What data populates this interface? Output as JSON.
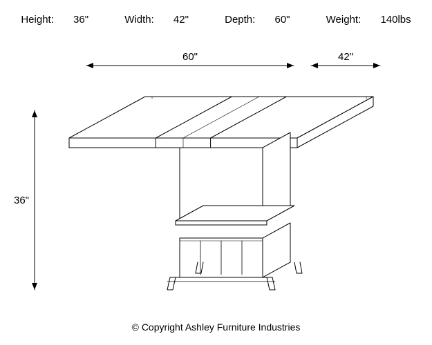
{
  "header": {
    "height_label": "Height:",
    "height_value": "36\"",
    "width_label": "Width:",
    "width_value": "42\"",
    "depth_label": "Depth:",
    "depth_value": "60\"",
    "weight_label": "Weight:",
    "weight_value": "140lbs"
  },
  "diagram": {
    "type": "dimensioned-line-drawing",
    "stroke_color": "#000000",
    "stroke_width": 1,
    "background_color": "#ffffff",
    "label_fontsize": 15,
    "dimensions": {
      "height": {
        "value": "36\"",
        "axis": "vertical-left"
      },
      "depth": {
        "value": "60\"",
        "axis": "top-horizontal-left"
      },
      "width": {
        "value": "42\"",
        "axis": "top-horizontal-right"
      }
    },
    "arrowhead": {
      "length": 10,
      "half_width": 4
    }
  },
  "footer": {
    "copyright": "© Copyright Ashley Furniture Industries"
  }
}
